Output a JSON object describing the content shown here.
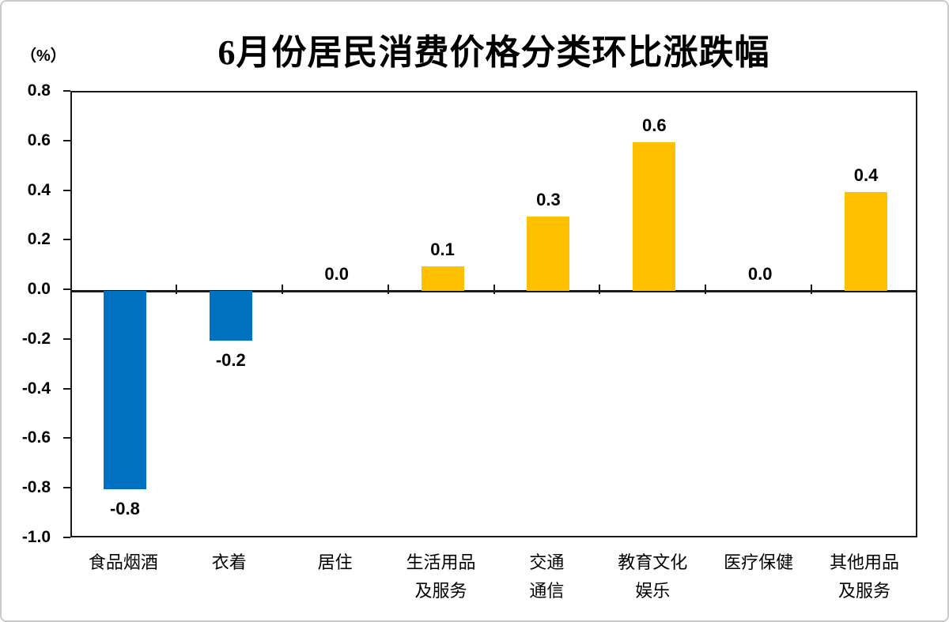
{
  "chart_data": {
    "type": "bar",
    "title": "6月份居民消费价格分类环比涨跌幅",
    "unit": "（%）",
    "categories": [
      "食品烟酒",
      "衣着",
      "居住",
      "生活用品及服务",
      "交通通信",
      "教育文化娱乐",
      "医疗保健",
      "其他用品及服务"
    ],
    "category_lines": [
      [
        "食品烟酒"
      ],
      [
        "衣着"
      ],
      [
        "居住"
      ],
      [
        "生活用品",
        "及服务"
      ],
      [
        "交通",
        "通信"
      ],
      [
        "教育文化",
        "娱乐"
      ],
      [
        "医疗保健"
      ],
      [
        "其他用品",
        "及服务"
      ]
    ],
    "values": [
      -0.8,
      -0.2,
      0.0,
      0.1,
      0.3,
      0.6,
      0.0,
      0.4
    ],
    "value_labels": [
      "-0.8",
      "-0.2",
      "0.0",
      "0.1",
      "0.3",
      "0.6",
      "0.0",
      "0.4"
    ],
    "ylim": [
      -1.0,
      0.8
    ],
    "ytick_step": 0.2,
    "ytick_labels": [
      "0.8",
      "0.6",
      "0.4",
      "0.2",
      "0.0",
      "-0.2",
      "-0.4",
      "-0.6",
      "-0.8",
      "-1.0"
    ],
    "colors": {
      "positive": "#FFC000",
      "negative": "#0070C0",
      "axis": "#1a1a1a"
    },
    "grid": false,
    "legend": null
  }
}
